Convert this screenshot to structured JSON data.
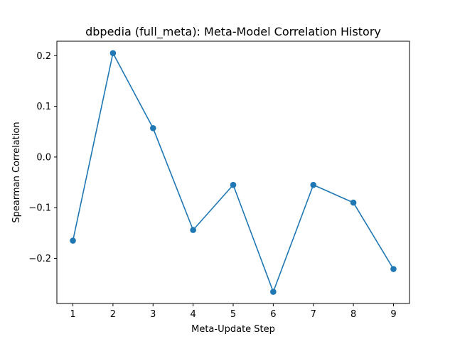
{
  "chart_data": {
    "type": "line",
    "title": "dbpedia (full_meta): Meta-Model Correlation History",
    "xlabel": "Meta-Update Step",
    "ylabel": "Spearman Correlation",
    "x": [
      1,
      2,
      3,
      4,
      5,
      6,
      7,
      8,
      9
    ],
    "series": [
      {
        "values": [
          -0.165,
          0.205,
          0.057,
          -0.144,
          -0.055,
          -0.266,
          -0.055,
          -0.09,
          -0.221
        ],
        "color": "#1f77b4",
        "marker": "circle"
      }
    ],
    "x_ticks": [
      "1",
      "2",
      "3",
      "4",
      "5",
      "6",
      "7",
      "8",
      "9"
    ],
    "y_ticks": [
      0.2,
      0.1,
      0.0,
      -0.1,
      -0.2
    ],
    "y_tick_labels": [
      "0.2",
      "0.1",
      "0.0",
      "−0.1",
      "−0.2"
    ],
    "xlim": [
      0.6,
      9.4
    ],
    "ylim": [
      -0.289,
      0.2285
    ],
    "grid": false,
    "legend": "none"
  }
}
